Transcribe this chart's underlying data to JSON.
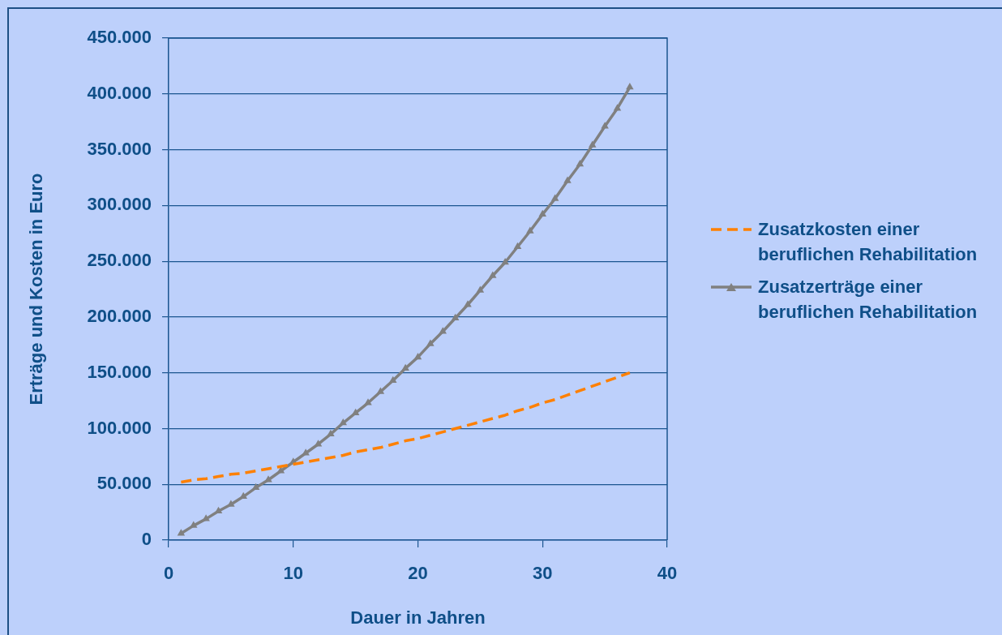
{
  "chart_data": {
    "type": "line",
    "xlabel": "Dauer in Jahren",
    "ylabel": "Erträge und Kosten in Euro",
    "x": [
      1,
      2,
      3,
      4,
      5,
      6,
      7,
      8,
      9,
      10,
      11,
      12,
      13,
      14,
      15,
      16,
      17,
      18,
      19,
      20,
      21,
      22,
      23,
      24,
      25,
      26,
      27,
      28,
      29,
      30,
      31,
      32,
      33,
      34,
      35,
      36,
      37
    ],
    "xlim": [
      0,
      40
    ],
    "xticks": [
      0,
      10,
      20,
      30,
      40
    ],
    "ylim": [
      0,
      450000
    ],
    "yticks": [
      0,
      {
        "value": 50000,
        "label": "50.000"
      },
      {
        "value": 100000,
        "label": "100.000"
      },
      {
        "value": 150000,
        "label": "150.000"
      },
      {
        "value": 200000,
        "label": "200.000"
      },
      {
        "value": 250000,
        "label": "250.000"
      },
      {
        "value": 300000,
        "label": "300.000"
      },
      {
        "value": 350000,
        "label": "350.000"
      },
      {
        "value": 400000,
        "label": "400.000"
      },
      {
        "value": 450000,
        "label": "450.000"
      }
    ],
    "grid": "y",
    "legend": "right",
    "series": [
      {
        "name": "Zusatzkosten einer beruflichen Rehabilitation",
        "color": "#ff8000",
        "line_style": "dashed",
        "marker": "none",
        "values": [
          52000,
          54000,
          55000,
          57000,
          59000,
          60000,
          62000,
          64000,
          66000,
          68000,
          70000,
          72000,
          74000,
          76000,
          79000,
          81000,
          83000,
          86000,
          89000,
          91000,
          94000,
          97000,
          100000,
          103000,
          106000,
          109000,
          112000,
          116000,
          119000,
          123000,
          126000,
          130000,
          134000,
          138000,
          142000,
          146000,
          150000
        ]
      },
      {
        "name": "Zusatzerträge einer beruflichen Rehabilitation",
        "color": "#808080",
        "line_style": "solid",
        "marker": "triangle",
        "values": [
          6000,
          13000,
          19000,
          26000,
          32000,
          39000,
          47000,
          54000,
          62000,
          70000,
          78000,
          86000,
          95000,
          105000,
          114000,
          123000,
          133000,
          143000,
          154000,
          164000,
          176000,
          187000,
          199000,
          211000,
          224000,
          237000,
          249000,
          263000,
          277000,
          292000,
          306000,
          322000,
          337000,
          354000,
          371000,
          387000,
          406000
        ]
      }
    ]
  }
}
